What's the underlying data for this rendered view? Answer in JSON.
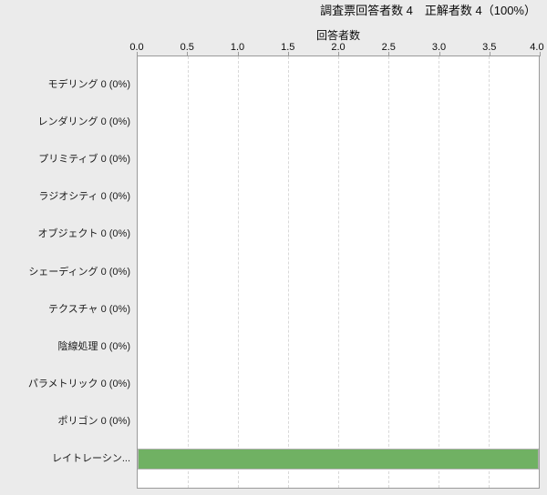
{
  "chart_data": {
    "type": "bar",
    "orientation": "horizontal",
    "title": "調査票回答者数 4　正解者数 4（100%）",
    "xlabel": "回答者数",
    "xlim": [
      0,
      4
    ],
    "tick_labels": [
      "0.0",
      "0.5",
      "1.0",
      "1.5",
      "2.0",
      "2.5",
      "3.0",
      "3.5",
      "4.0"
    ],
    "categories": [
      "モデリング 0 (0%)",
      "レンダリング 0 (0%)",
      "プリミティブ 0 (0%)",
      "ラジオシティ 0 (0%)",
      "オブジェクト 0 (0%)",
      "シェーディング 0 (0%)",
      "テクスチャ 0 (0%)",
      "陰線処理 0 (0%)",
      "パラメトリック 0 (0%)",
      "ポリゴン 0 (0%)",
      "レイトレーシン..."
    ],
    "values": [
      0,
      0,
      0,
      0,
      0,
      0,
      0,
      0,
      0,
      0,
      4
    ],
    "grid": true,
    "legend": false,
    "colors": {
      "background": "#ebebeb",
      "plot_background": "#ffffff",
      "plot_border": "#9a9a9a",
      "gridline": "#d9d9d9",
      "bar": "#70b163",
      "bar_border": "#b3b3b3",
      "text": "#000000"
    }
  }
}
